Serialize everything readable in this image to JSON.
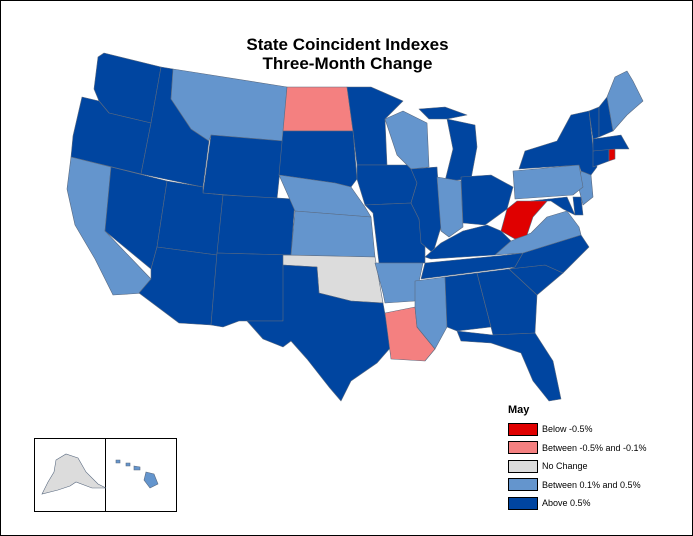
{
  "title": {
    "line1": "State Coincident Indexes",
    "line2": "Three-Month Change"
  },
  "legend": {
    "title": "May",
    "items": [
      {
        "label": "Below -0.5%",
        "color": "#e00000"
      },
      {
        "label": "Between -0.5% and -0.1%",
        "color": "#f48080"
      },
      {
        "label": "No Change",
        "color": "#dcdcdc"
      },
      {
        "label": "Between 0.1% and 0.5%",
        "color": "#6495cd"
      },
      {
        "label": "Above 0.5%",
        "color": "#0045a0"
      }
    ]
  },
  "map_data": {
    "period": "May",
    "measure": "three-month change",
    "categories": {
      "below_-0.5": "#e00000",
      "between_-0.5_and_-0.1": "#f48080",
      "no_change": "#dcdcdc",
      "between_0.1_and_0.5": "#6495cd",
      "above_0.5": "#0045a0"
    },
    "states": {
      "WA": "above_0.5",
      "OR": "above_0.5",
      "CA": "between_0.1_and_0.5",
      "NV": "above_0.5",
      "ID": "above_0.5",
      "MT": "between_0.1_and_0.5",
      "WY": "above_0.5",
      "UT": "above_0.5",
      "AZ": "above_0.5",
      "CO": "above_0.5",
      "NM": "above_0.5",
      "ND": "between_-0.5_and_-0.1",
      "SD": "above_0.5",
      "NE": "between_0.1_and_0.5",
      "KS": "between_0.1_and_0.5",
      "OK": "no_change",
      "TX": "above_0.5",
      "MN": "above_0.5",
      "IA": "above_0.5",
      "MO": "above_0.5",
      "AR": "between_0.1_and_0.5",
      "LA": "between_-0.5_and_-0.1",
      "WI": "between_0.1_and_0.5",
      "IL": "above_0.5",
      "MI": "above_0.5",
      "IN": "between_0.1_and_0.5",
      "OH": "above_0.5",
      "KY": "above_0.5",
      "TN": "above_0.5",
      "MS": "between_0.1_and_0.5",
      "AL": "above_0.5",
      "GA": "above_0.5",
      "FL": "above_0.5",
      "SC": "above_0.5",
      "NC": "above_0.5",
      "VA": "between_0.1_and_0.5",
      "WV": "below_-0.5",
      "MD": "above_0.5",
      "DE": "above_0.5",
      "NJ": "between_0.1_and_0.5",
      "PA": "between_0.1_and_0.5",
      "NY": "above_0.5",
      "CT": "above_0.5",
      "RI": "below_-0.5",
      "MA": "above_0.5",
      "VT": "above_0.5",
      "NH": "above_0.5",
      "ME": "between_0.1_and_0.5",
      "AK": "no_change",
      "HI": "between_0.1_and_0.5"
    }
  }
}
